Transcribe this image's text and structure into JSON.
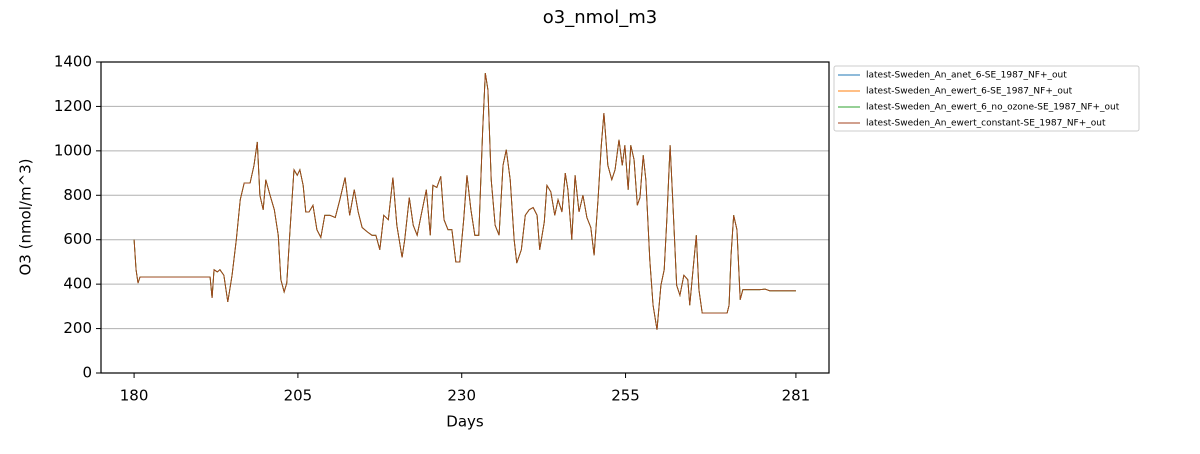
{
  "chart_data": {
    "type": "line",
    "title": "o3_nmol_m3",
    "x_label": "Days",
    "y_label": "O3 (nmol/m^3)",
    "xlim": [
      174.95,
      286.05
    ],
    "ylim": [
      0,
      1400
    ],
    "xticks": [
      180,
      205,
      230,
      255,
      281
    ],
    "yticks": [
      0,
      200,
      400,
      600,
      800,
      1000,
      1200,
      1400
    ],
    "grid": true,
    "legend": "outside upper right",
    "x": [
      180,
      180.3,
      180.6,
      180.9,
      191.6,
      191.9,
      192.2,
      192.7,
      193.1,
      193.7,
      194.3,
      194.95,
      195.6,
      196.2,
      196.8,
      197.7,
      198.3,
      198.8,
      199.2,
      199.7,
      200.1,
      200.75,
      201.4,
      202,
      202.4,
      202.9,
      203.3,
      203.8,
      204.4,
      204.9,
      205.3,
      205.8,
      206.2,
      206.7,
      207.3,
      207.9,
      208.5,
      209.1,
      209.9,
      210.7,
      211.4,
      212.2,
      212.9,
      213.6,
      214.2,
      214.8,
      215.6,
      216.3,
      216.9,
      217.5,
      218.1,
      218.8,
      219.5,
      220.1,
      220.9,
      221.3,
      222,
      222.6,
      223.2,
      223.8,
      224.6,
      225.2,
      225.6,
      226.2,
      226.8,
      227.3,
      227.9,
      228.5,
      229.1,
      229.7,
      230.3,
      230.8,
      231.4,
      232,
      232.6,
      233.2,
      233.6,
      234,
      234.5,
      235.1,
      235.7,
      236.3,
      236.8,
      237.4,
      238,
      238.4,
      239.1,
      239.7,
      240.3,
      240.9,
      241.5,
      241.9,
      242.6,
      243,
      243.6,
      244.2,
      244.7,
      245.3,
      245.8,
      246.2,
      246.8,
      247.3,
      247.9,
      248.5,
      249.1,
      249.7,
      250.2,
      250.8,
      251.3,
      251.7,
      252.3,
      252.9,
      253.4,
      254,
      254.5,
      254.9,
      255.4,
      255.8,
      256.3,
      256.8,
      257.2,
      257.7,
      258.1,
      258.7,
      259.2,
      259.8,
      260.4,
      260.9,
      261.3,
      261.8,
      262.2,
      262.8,
      263.3,
      263.9,
      264.5,
      264.8,
      265.3,
      265.8,
      266.2,
      266.7,
      270.5,
      270.8,
      271.1,
      271.5,
      272,
      272.5,
      272.9,
      275.5,
      276.3,
      277,
      281
    ],
    "series": [
      {
        "name": "latest-Sweden_An_anet_6-SE_1987_NF+_out",
        "color": "#1f77b4",
        "values": [
          600,
          465,
          405,
          432,
          432,
          338,
          465,
          455,
          465,
          440,
          320,
          440,
          600,
          780,
          855,
          855,
          935,
          1040,
          800,
          735,
          870,
          800,
          735,
          620,
          420,
          365,
          405,
          645,
          915,
          890,
          915,
          845,
          725,
          725,
          755,
          645,
          610,
          710,
          710,
          700,
          780,
          880,
          710,
          825,
          725,
          655,
          635,
          620,
          620,
          555,
          710,
          690,
          880,
          665,
          520,
          600,
          790,
          665,
          620,
          710,
          825,
          620,
          845,
          835,
          885,
          690,
          645,
          645,
          500,
          500,
          690,
          890,
          735,
          620,
          620,
          1095,
          1350,
          1275,
          870,
          665,
          620,
          935,
          1005,
          870,
          600,
          495,
          555,
          710,
          735,
          745,
          710,
          555,
          680,
          845,
          815,
          710,
          780,
          725,
          900,
          825,
          600,
          890,
          725,
          800,
          700,
          655,
          530,
          780,
          1025,
          1170,
          935,
          870,
          915,
          1050,
          935,
          1025,
          825,
          1025,
          960,
          755,
          790,
          980,
          870,
          510,
          305,
          195,
          395,
          465,
          690,
          1025,
          780,
          395,
          350,
          440,
          420,
          305,
          465,
          620,
          375,
          270,
          270,
          305,
          530,
          710,
          645,
          330,
          375,
          375,
          378,
          370,
          370
        ]
      },
      {
        "name": "latest-Sweden_An_ewert_6-SE_1987_NF+_out",
        "color": "#ff7f0e",
        "values": [
          600,
          465,
          405,
          432,
          432,
          338,
          465,
          455,
          465,
          440,
          320,
          440,
          600,
          780,
          855,
          855,
          935,
          1040,
          800,
          735,
          870,
          800,
          735,
          620,
          420,
          365,
          405,
          645,
          915,
          890,
          915,
          845,
          725,
          725,
          755,
          645,
          610,
          710,
          710,
          700,
          780,
          880,
          710,
          825,
          725,
          655,
          635,
          620,
          620,
          555,
          710,
          690,
          880,
          665,
          520,
          600,
          790,
          665,
          620,
          710,
          825,
          620,
          845,
          835,
          885,
          690,
          645,
          645,
          500,
          500,
          690,
          890,
          735,
          620,
          620,
          1095,
          1350,
          1275,
          870,
          665,
          620,
          935,
          1005,
          870,
          600,
          495,
          555,
          710,
          735,
          745,
          710,
          555,
          680,
          845,
          815,
          710,
          780,
          725,
          900,
          825,
          600,
          890,
          725,
          800,
          700,
          655,
          530,
          780,
          1025,
          1170,
          935,
          870,
          915,
          1050,
          935,
          1025,
          825,
          1025,
          960,
          755,
          790,
          980,
          870,
          510,
          305,
          195,
          395,
          465,
          690,
          1025,
          780,
          395,
          350,
          440,
          420,
          305,
          465,
          620,
          375,
          270,
          270,
          305,
          530,
          710,
          645,
          330,
          375,
          375,
          378,
          370,
          370
        ]
      },
      {
        "name": "latest-Sweden_An_ewert_6_no_ozone-SE_1987_NF+_out",
        "color": "#2ca02c",
        "values": [
          600,
          465,
          405,
          432,
          432,
          338,
          465,
          455,
          465,
          440,
          320,
          440,
          600,
          780,
          855,
          855,
          935,
          1040,
          800,
          735,
          870,
          800,
          735,
          620,
          420,
          365,
          405,
          645,
          915,
          890,
          915,
          845,
          725,
          725,
          755,
          645,
          610,
          710,
          710,
          700,
          780,
          880,
          710,
          825,
          725,
          655,
          635,
          620,
          620,
          555,
          710,
          690,
          880,
          665,
          520,
          600,
          790,
          665,
          620,
          710,
          825,
          620,
          845,
          835,
          885,
          690,
          645,
          645,
          500,
          500,
          690,
          890,
          735,
          620,
          620,
          1095,
          1350,
          1275,
          870,
          665,
          620,
          935,
          1005,
          870,
          600,
          495,
          555,
          710,
          735,
          745,
          710,
          555,
          680,
          845,
          815,
          710,
          780,
          725,
          900,
          825,
          600,
          890,
          725,
          800,
          700,
          655,
          530,
          780,
          1025,
          1170,
          935,
          870,
          915,
          1050,
          935,
          1025,
          825,
          1025,
          960,
          755,
          790,
          980,
          870,
          510,
          305,
          195,
          395,
          465,
          690,
          1025,
          780,
          395,
          350,
          440,
          420,
          305,
          465,
          620,
          375,
          270,
          270,
          305,
          530,
          710,
          645,
          330,
          375,
          375,
          378,
          370,
          370
        ]
      },
      {
        "name": "latest-Sweden_An_ewert_constant-SE_1987_NF+_out",
        "color": "#a3421c",
        "values": [
          600,
          465,
          405,
          432,
          432,
          338,
          465,
          455,
          465,
          440,
          320,
          440,
          600,
          780,
          855,
          855,
          935,
          1040,
          800,
          735,
          870,
          800,
          735,
          620,
          420,
          365,
          405,
          645,
          915,
          890,
          915,
          845,
          725,
          725,
          755,
          645,
          610,
          710,
          710,
          700,
          780,
          880,
          710,
          825,
          725,
          655,
          635,
          620,
          620,
          555,
          710,
          690,
          880,
          665,
          520,
          600,
          790,
          665,
          620,
          710,
          825,
          620,
          845,
          835,
          885,
          690,
          645,
          645,
          500,
          500,
          690,
          890,
          735,
          620,
          620,
          1095,
          1350,
          1275,
          870,
          665,
          620,
          935,
          1005,
          870,
          600,
          495,
          555,
          710,
          735,
          745,
          710,
          555,
          680,
          845,
          815,
          710,
          780,
          725,
          900,
          825,
          600,
          890,
          725,
          800,
          700,
          655,
          530,
          780,
          1025,
          1170,
          935,
          870,
          915,
          1050,
          935,
          1025,
          825,
          1025,
          960,
          755,
          790,
          980,
          870,
          510,
          305,
          195,
          395,
          465,
          690,
          1025,
          780,
          395,
          350,
          440,
          420,
          305,
          465,
          620,
          375,
          270,
          270,
          305,
          530,
          710,
          645,
          330,
          375,
          375,
          378,
          370,
          370
        ]
      }
    ]
  }
}
